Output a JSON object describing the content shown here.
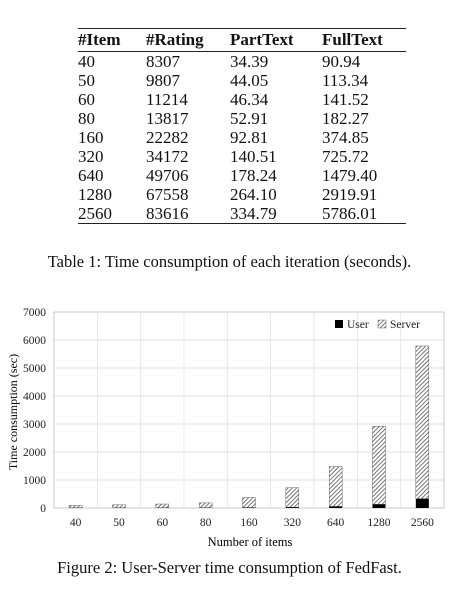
{
  "table": {
    "headers": [
      "#Item",
      "#Rating",
      "PartText",
      "FullText"
    ],
    "rows": [
      [
        "40",
        "8307",
        "34.39",
        "90.94"
      ],
      [
        "50",
        "9807",
        "44.05",
        "113.34"
      ],
      [
        "60",
        "11214",
        "46.34",
        "141.52"
      ],
      [
        "80",
        "13817",
        "52.91",
        "182.27"
      ],
      [
        "160",
        "22282",
        "92.81",
        "374.85"
      ],
      [
        "320",
        "34172",
        "140.51",
        "725.72"
      ],
      [
        "640",
        "49706",
        "178.24",
        "1479.40"
      ],
      [
        "1280",
        "67558",
        "264.10",
        "2919.91"
      ],
      [
        "2560",
        "83616",
        "334.79",
        "5786.01"
      ]
    ],
    "caption": "Table 1: Time consumption of each iteration (seconds)."
  },
  "figure": {
    "caption": "Figure 2: User-Server time consumption of FedFast."
  },
  "chart_data": {
    "type": "bar",
    "stacked": true,
    "categories": [
      "40",
      "50",
      "60",
      "80",
      "160",
      "320",
      "640",
      "1280",
      "2560"
    ],
    "series": [
      {
        "name": "User",
        "values": [
          5,
          6,
          7,
          8,
          15,
          28,
          55,
          130,
          330
        ],
        "color": "#000000"
      },
      {
        "name": "Server",
        "values": [
          86,
          107,
          135,
          174,
          360,
          698,
          1424,
          2790,
          5456
        ],
        "color": "#888888"
      }
    ],
    "xlabel": "Number of items",
    "ylabel": "Time consumption (sec)",
    "ylim": [
      0,
      7000
    ],
    "yticks": [
      0,
      1000,
      2000,
      3000,
      4000,
      5000,
      6000,
      7000
    ],
    "grid": true,
    "legend_position": "top-right"
  }
}
